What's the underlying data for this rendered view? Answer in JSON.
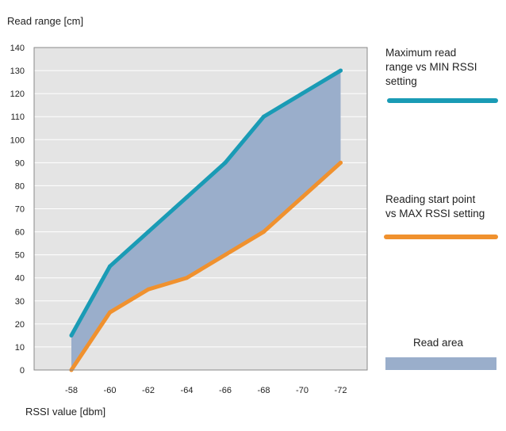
{
  "chart_data": {
    "type": "line",
    "title": "",
    "ylabel": "Read range [cm]",
    "xlabel": "RSSI value [dbm]",
    "categories": [
      "-58",
      "-60",
      "-62",
      "-64",
      "-66",
      "-68",
      "-70",
      "-72"
    ],
    "yticks": [
      0,
      10,
      20,
      30,
      40,
      50,
      60,
      70,
      80,
      90,
      100,
      110,
      120,
      130,
      140
    ],
    "ylim": [
      0,
      140
    ],
    "grid": true,
    "series": [
      {
        "name": "Maximum read range vs MIN RSSI setting",
        "color": "#1a9bb5",
        "values": [
          15,
          45,
          60,
          75,
          90,
          110,
          120,
          130
        ]
      },
      {
        "name": "Reading start point vs MAX RSSI setting",
        "color": "#f0912e",
        "values": [
          0,
          25,
          35,
          40,
          50,
          60,
          75,
          90
        ]
      }
    ],
    "area": {
      "name": "Read area",
      "color": "#9aaecb"
    },
    "legend_position": "right"
  },
  "legend": {
    "max_label_lines": [
      "Maximum read",
      "range vs MIN RSSI",
      "setting"
    ],
    "start_label_lines": [
      "Reading start point",
      "vs MAX RSSI setting"
    ],
    "area_label": "Read area"
  },
  "colors": {
    "plot_background": "#e4e4e4",
    "grid": "#ffffff",
    "frame": "#8a8a8a"
  }
}
